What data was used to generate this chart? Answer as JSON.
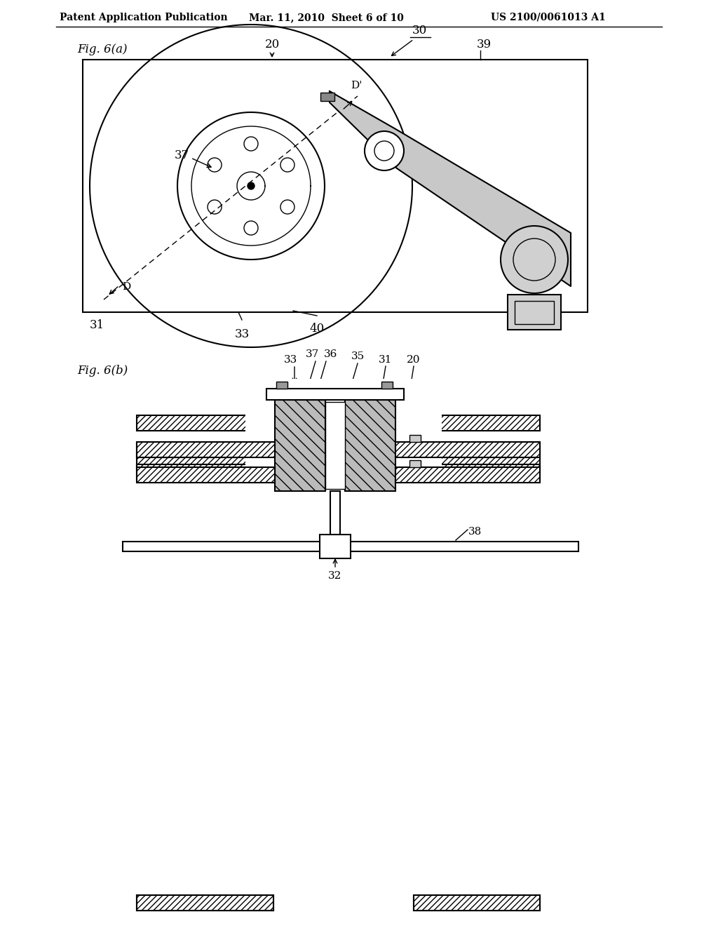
{
  "bg_color": "#ffffff",
  "line_color": "#000000",
  "header_text": "Patent Application Publication",
  "header_date": "Mar. 11, 2010  Sheet 6 of 10",
  "header_patent": "US 2100/0061013 A1",
  "fig_a_label": "Fig. 6(a)",
  "fig_b_label": "Fig. 6(b)"
}
